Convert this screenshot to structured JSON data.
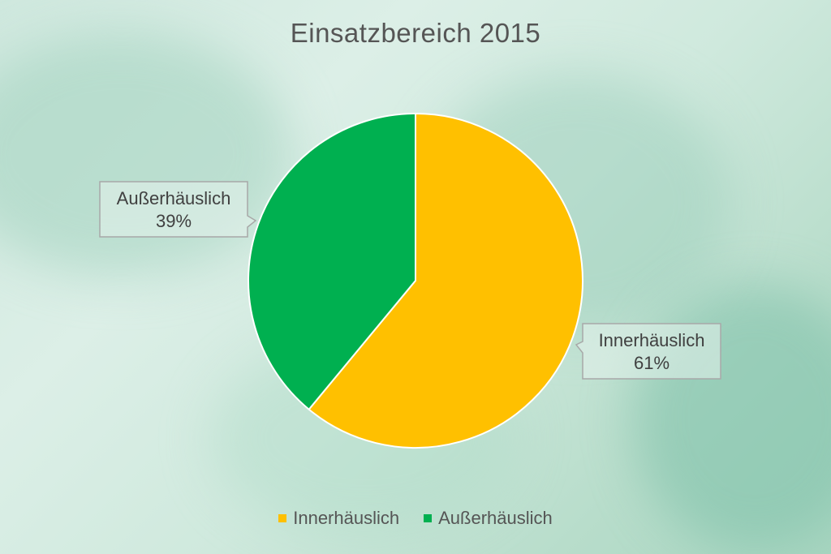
{
  "chart_data": {
    "type": "pie",
    "title": "Einsatzbereich 2015",
    "categories": [
      "Innerhäuslich",
      "Außerhäuslich"
    ],
    "values": [
      61,
      39
    ],
    "unit": "%",
    "colors": [
      "#FFC000",
      "#00B050"
    ],
    "data_labels": [
      {
        "name": "Innerhäuslich",
        "value": "61%"
      },
      {
        "name": "Außerhäuslich",
        "value": "39%"
      }
    ],
    "legend": {
      "position": "bottom",
      "entries": [
        "Innerhäuslich",
        "Außerhäuslich"
      ]
    }
  }
}
